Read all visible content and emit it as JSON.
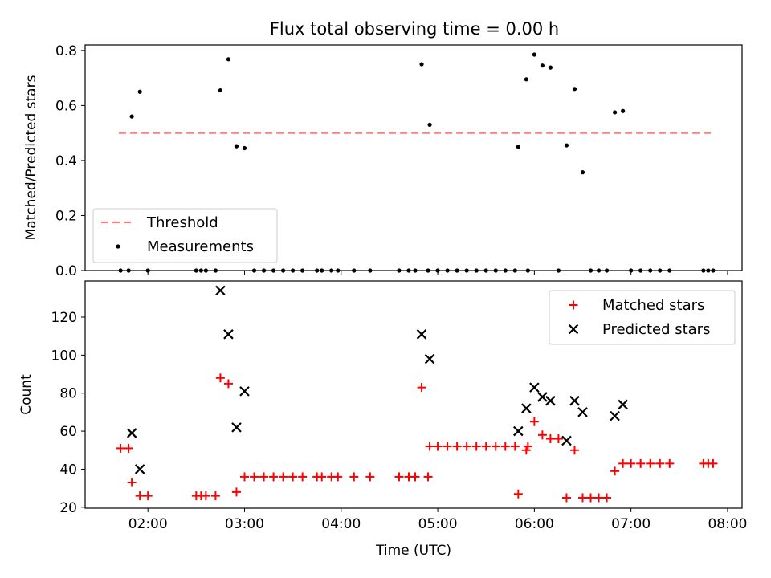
{
  "figure": {
    "title": "Flux total observing time = 0.00 h"
  },
  "chart_data": [
    {
      "type": "scatter",
      "panel": "top",
      "ylabel": "Matched/Predicted stars",
      "xlabel": "",
      "ylim": [
        0,
        0.82
      ],
      "yticks": [
        0.0,
        0.2,
        0.4,
        0.6,
        0.8
      ],
      "ytick_labels": [
        "0.0",
        "0.2",
        "0.4",
        "0.6",
        "0.8"
      ],
      "x_ticks_hours": [
        2,
        3,
        4,
        5,
        6,
        7,
        8
      ],
      "show_xtick_labels": false,
      "grid": false,
      "legend_placement": "lower-left",
      "threshold": {
        "name": "Threshold",
        "value": 0.5,
        "x_start": "01:42",
        "x_end": "07:50",
        "color": "#ff7f7f",
        "style": "dashed"
      },
      "series": [
        {
          "name": "Measurements",
          "color": "#000000",
          "marker": "dot",
          "points": [
            [
              "01:43",
              0.0
            ],
            [
              "01:48",
              0.0
            ],
            [
              "01:50",
              0.56
            ],
            [
              "01:55",
              0.65
            ],
            [
              "02:00",
              0.0
            ],
            [
              "02:30",
              0.0
            ],
            [
              "02:33",
              0.0
            ],
            [
              "02:36",
              0.0
            ],
            [
              "02:42",
              0.0
            ],
            [
              "02:45",
              0.655
            ],
            [
              "02:50",
              0.768
            ],
            [
              "02:55",
              0.452
            ],
            [
              "03:00",
              0.445
            ],
            [
              "03:06",
              0.0
            ],
            [
              "03:12",
              0.0
            ],
            [
              "03:18",
              0.0
            ],
            [
              "03:24",
              0.0
            ],
            [
              "03:30",
              0.0
            ],
            [
              "03:36",
              0.0
            ],
            [
              "03:45",
              0.0
            ],
            [
              "03:48",
              0.0
            ],
            [
              "03:54",
              0.0
            ],
            [
              "03:58",
              0.0
            ],
            [
              "04:08",
              0.0
            ],
            [
              "04:18",
              0.0
            ],
            [
              "04:36",
              0.0
            ],
            [
              "04:42",
              0.0
            ],
            [
              "04:46",
              0.0
            ],
            [
              "04:54",
              0.0
            ],
            [
              "04:50",
              0.75
            ],
            [
              "04:55",
              0.53
            ],
            [
              "05:00",
              0.0
            ],
            [
              "05:06",
              0.0
            ],
            [
              "05:12",
              0.0
            ],
            [
              "05:18",
              0.0
            ],
            [
              "05:24",
              0.0
            ],
            [
              "05:30",
              0.0
            ],
            [
              "05:36",
              0.0
            ],
            [
              "05:42",
              0.0
            ],
            [
              "05:48",
              0.0
            ],
            [
              "05:56",
              0.0
            ],
            [
              "05:50",
              0.45
            ],
            [
              "05:55",
              0.695
            ],
            [
              "06:00",
              0.785
            ],
            [
              "06:05",
              0.745
            ],
            [
              "06:10",
              0.738
            ],
            [
              "06:15",
              0.0
            ],
            [
              "06:20",
              0.455
            ],
            [
              "06:25",
              0.66
            ],
            [
              "06:30",
              0.357
            ],
            [
              "06:35",
              0.0
            ],
            [
              "06:40",
              0.0
            ],
            [
              "06:45",
              0.0
            ],
            [
              "06:50",
              0.575
            ],
            [
              "06:55",
              0.58
            ],
            [
              "07:00",
              0.0
            ],
            [
              "07:06",
              0.0
            ],
            [
              "07:12",
              0.0
            ],
            [
              "07:18",
              0.0
            ],
            [
              "07:24",
              0.0
            ],
            [
              "07:45",
              0.0
            ],
            [
              "07:48",
              0.0
            ],
            [
              "07:51",
              0.0
            ]
          ]
        }
      ]
    },
    {
      "type": "scatter",
      "panel": "bottom",
      "ylabel": "Count",
      "xlabel": "Time (UTC)",
      "ylim": [
        19.5,
        139
      ],
      "yticks": [
        20,
        40,
        60,
        80,
        100,
        120
      ],
      "ytick_labels": [
        "20",
        "40",
        "60",
        "80",
        "100",
        "120"
      ],
      "x_ticks_hours": [
        2,
        3,
        4,
        5,
        6,
        7,
        8
      ],
      "xtick_labels": [
        "02:00",
        "03:00",
        "04:00",
        "05:00",
        "06:00",
        "07:00",
        "08:00"
      ],
      "xlim_hours": [
        1.35,
        8.15
      ],
      "grid": false,
      "legend_placement": "upper-right",
      "series": [
        {
          "name": "Matched stars",
          "color": "#ff0000",
          "marker": "plus",
          "points": [
            [
              "01:43",
              51
            ],
            [
              "01:48",
              51
            ],
            [
              "01:50",
              33
            ],
            [
              "01:55",
              26
            ],
            [
              "02:00",
              26
            ],
            [
              "02:30",
              26
            ],
            [
              "02:33",
              26
            ],
            [
              "02:36",
              26
            ],
            [
              "02:42",
              26
            ],
            [
              "02:45",
              88
            ],
            [
              "02:50",
              85
            ],
            [
              "02:55",
              28
            ],
            [
              "03:00",
              36
            ],
            [
              "03:06",
              36
            ],
            [
              "03:12",
              36
            ],
            [
              "03:18",
              36
            ],
            [
              "03:24",
              36
            ],
            [
              "03:30",
              36
            ],
            [
              "03:36",
              36
            ],
            [
              "03:45",
              36
            ],
            [
              "03:48",
              36
            ],
            [
              "03:54",
              36
            ],
            [
              "03:58",
              36
            ],
            [
              "04:08",
              36
            ],
            [
              "04:18",
              36
            ],
            [
              "04:36",
              36
            ],
            [
              "04:42",
              36
            ],
            [
              "04:46",
              36
            ],
            [
              "04:54",
              36
            ],
            [
              "04:50",
              83
            ],
            [
              "04:55",
              52
            ],
            [
              "05:00",
              52
            ],
            [
              "05:06",
              52
            ],
            [
              "05:12",
              52
            ],
            [
              "05:18",
              52
            ],
            [
              "05:24",
              52
            ],
            [
              "05:30",
              52
            ],
            [
              "05:36",
              52
            ],
            [
              "05:42",
              52
            ],
            [
              "05:48",
              52
            ],
            [
              "05:56",
              52
            ],
            [
              "05:50",
              27
            ],
            [
              "05:55",
              50
            ],
            [
              "06:00",
              65
            ],
            [
              "06:05",
              58
            ],
            [
              "06:10",
              56
            ],
            [
              "06:15",
              56
            ],
            [
              "06:20",
              25
            ],
            [
              "06:25",
              50
            ],
            [
              "06:30",
              25
            ],
            [
              "06:35",
              25
            ],
            [
              "06:40",
              25
            ],
            [
              "06:45",
              25
            ],
            [
              "06:50",
              39
            ],
            [
              "06:55",
              43
            ],
            [
              "07:00",
              43
            ],
            [
              "07:06",
              43
            ],
            [
              "07:12",
              43
            ],
            [
              "07:18",
              43
            ],
            [
              "07:24",
              43
            ],
            [
              "07:45",
              43
            ],
            [
              "07:48",
              43
            ],
            [
              "07:51",
              43
            ]
          ]
        },
        {
          "name": "Predicted stars",
          "color": "#000000",
          "marker": "x",
          "points": [
            [
              "01:50",
              59
            ],
            [
              "01:55",
              40
            ],
            [
              "02:45",
              134
            ],
            [
              "02:50",
              111
            ],
            [
              "02:55",
              62
            ],
            [
              "03:00",
              81
            ],
            [
              "04:50",
              111
            ],
            [
              "04:55",
              98
            ],
            [
              "05:50",
              60
            ],
            [
              "05:55",
              72
            ],
            [
              "06:00",
              83
            ],
            [
              "06:05",
              78
            ],
            [
              "06:10",
              76
            ],
            [
              "06:20",
              55
            ],
            [
              "06:25",
              76
            ],
            [
              "06:30",
              70
            ],
            [
              "06:50",
              68
            ],
            [
              "06:55",
              74
            ]
          ]
        }
      ]
    }
  ]
}
